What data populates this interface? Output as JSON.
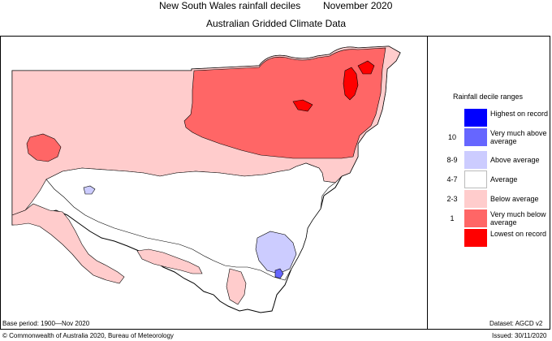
{
  "header": {
    "title": "New South Wales rainfall deciles",
    "period": "November 2020",
    "subtitle": "Australian Gridded Climate Data"
  },
  "legend": {
    "title": "Rainfall decile ranges",
    "items": [
      {
        "range": "",
        "label": "Highest on record",
        "color": "#0000ff"
      },
      {
        "range": "10",
        "label": "Very much above average",
        "color": "#6666ff"
      },
      {
        "range": "8-9",
        "label": "Above average",
        "color": "#ccccff"
      },
      {
        "range": "4-7",
        "label": "Average",
        "color": "#ffffff"
      },
      {
        "range": "2-3",
        "label": "Below average",
        "color": "#ffcccc"
      },
      {
        "range": "1",
        "label": "Very much below average",
        "color": "#ff6666"
      },
      {
        "range": "",
        "label": "Lowest on record",
        "color": "#ff0000"
      }
    ]
  },
  "footer": {
    "base_period": "Base period: 1900—Nov 2020",
    "dataset": "Dataset: AGCD v2",
    "copyright": "© Commonwealth of Australia 2020, Bureau of Meteorology",
    "issued": "Issued: 30/11/2020"
  }
}
